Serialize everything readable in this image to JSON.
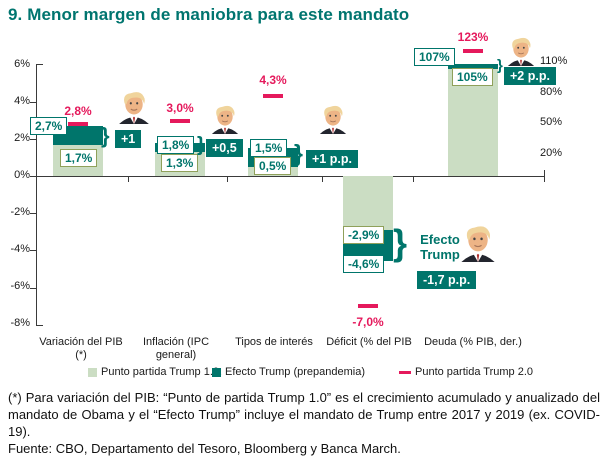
{
  "title": "9. Menor margen de maniobra para este mandato",
  "colors": {
    "teal": "#00756B",
    "light_green": "#CBDDC3",
    "pink": "#E5195C"
  },
  "chart_data": {
    "type": "bar",
    "title": "9. Menor margen de maniobra para este mandato",
    "categories": [
      "Variación del PIB (*)",
      "Inflación (IPC general)",
      "Tipos de interés",
      "Déficit (% del PIB",
      "Deuda (% PIB, der.)"
    ],
    "left_axis": {
      "ticks": [
        "6%",
        "4%",
        "2%",
        "0%",
        "-2%",
        "-4%",
        "-6%",
        "-8%"
      ],
      "range": [
        -8,
        6
      ],
      "unit": "%"
    },
    "right_axis": {
      "ticks": [
        "110%",
        "80%",
        "50%",
        "20%"
      ],
      "note": "Deuda series plotted on right axis"
    },
    "series": [
      {
        "name": "Punto partida Trump 1.0",
        "color": "#CBDDC3",
        "values": [
          1.7,
          1.3,
          0.5,
          -2.9,
          105
        ]
      },
      {
        "name": "Efecto Trump (prepandemia)",
        "color": "#00756B",
        "deltas": [
          1.0,
          0.5,
          1.0,
          -1.7,
          2.0
        ],
        "totals": [
          2.7,
          1.8,
          1.5,
          -4.6,
          107
        ]
      },
      {
        "name": "Punto partida Trump 2.0",
        "color": "#E5195C",
        "values": [
          2.8,
          3.0,
          4.3,
          -7.0,
          123
        ]
      }
    ],
    "groups": [
      {
        "cat1": "Variación del PIB",
        "cat2": "(*)",
        "light_label": "1,7%",
        "total_label": "2,7%",
        "effect_label": "+1",
        "pink_label": "2,8%"
      },
      {
        "cat1": "Inflación (IPC",
        "cat2": "general)",
        "light_label": "1,3%",
        "total_label": "1,8%",
        "effect_label": "+0,5",
        "pink_label": "3,0%"
      },
      {
        "cat1": "Tipos de interés",
        "cat2": "",
        "light_label": "0,5%",
        "total_label": "1,5%",
        "effect_label": "+1 p.p.",
        "pink_label": "4,3%"
      },
      {
        "cat1": "Déficit (% del PIB",
        "cat2": "",
        "light_label": "-2,9%",
        "total_label": "-4,6%",
        "effect_label": "-1,7 p.p.",
        "pink_label": "-7,0%"
      },
      {
        "cat1": "Deuda (% PIB, der.)",
        "cat2": "",
        "light_label": "105%",
        "total_label": "107%",
        "effect_label": "+2 p.p.",
        "pink_label": "123%"
      }
    ],
    "annotation": {
      "line1": "Efecto",
      "line2": "Trump"
    },
    "brace_glyph": "}"
  },
  "legend": [
    {
      "label": "Punto partida Trump 1.0."
    },
    {
      "label": "Efecto Trump (prepandemia)"
    },
    {
      "label": "Punto partida Trump 2.0"
    }
  ],
  "footnote": {
    "note": "(*) Para variación del PIB: “Punto de partida Trump 1.0” es el crecimiento acumulado y anualizado del mandato de Obama y el “Efecto Trump” incluye el mandato de Trump entre 2017 y 2019 (ex. COVID-19).",
    "source": "Fuente: CBO, Departamento del Tesoro, Bloomberg y Banca March."
  }
}
